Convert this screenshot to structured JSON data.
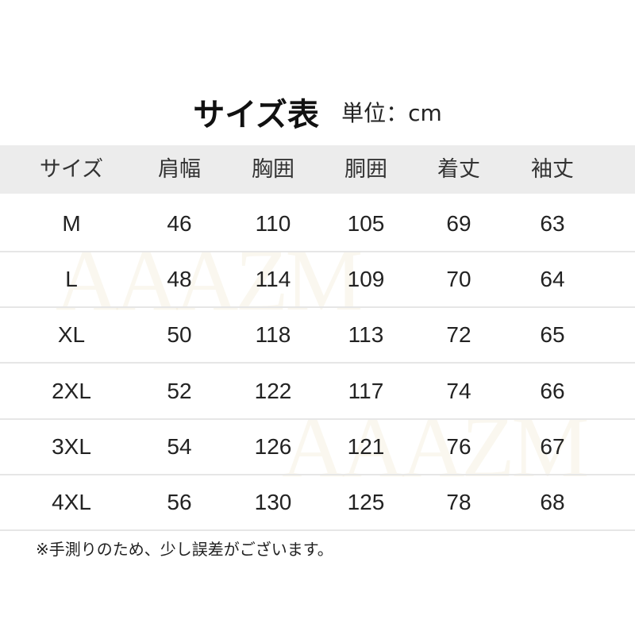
{
  "title": {
    "main": "サイズ表",
    "unit": "単位：cm"
  },
  "columns": [
    "サイズ",
    "肩幅",
    "胸囲",
    "胴囲",
    "着丈",
    "袖丈"
  ],
  "rows": [
    [
      "M",
      "46",
      "110",
      "105",
      "69",
      "63"
    ],
    [
      "L",
      "48",
      "114",
      "109",
      "70",
      "64"
    ],
    [
      "XL",
      "50",
      "118",
      "113",
      "72",
      "65"
    ],
    [
      "2XL",
      "52",
      "122",
      "117",
      "74",
      "66"
    ],
    [
      "3XL",
      "54",
      "126",
      "121",
      "76",
      "67"
    ],
    [
      "4XL",
      "56",
      "130",
      "125",
      "78",
      "68"
    ]
  ],
  "note": "※手測りのため、少し誤差がございます。",
  "watermark": "AAAZM"
}
